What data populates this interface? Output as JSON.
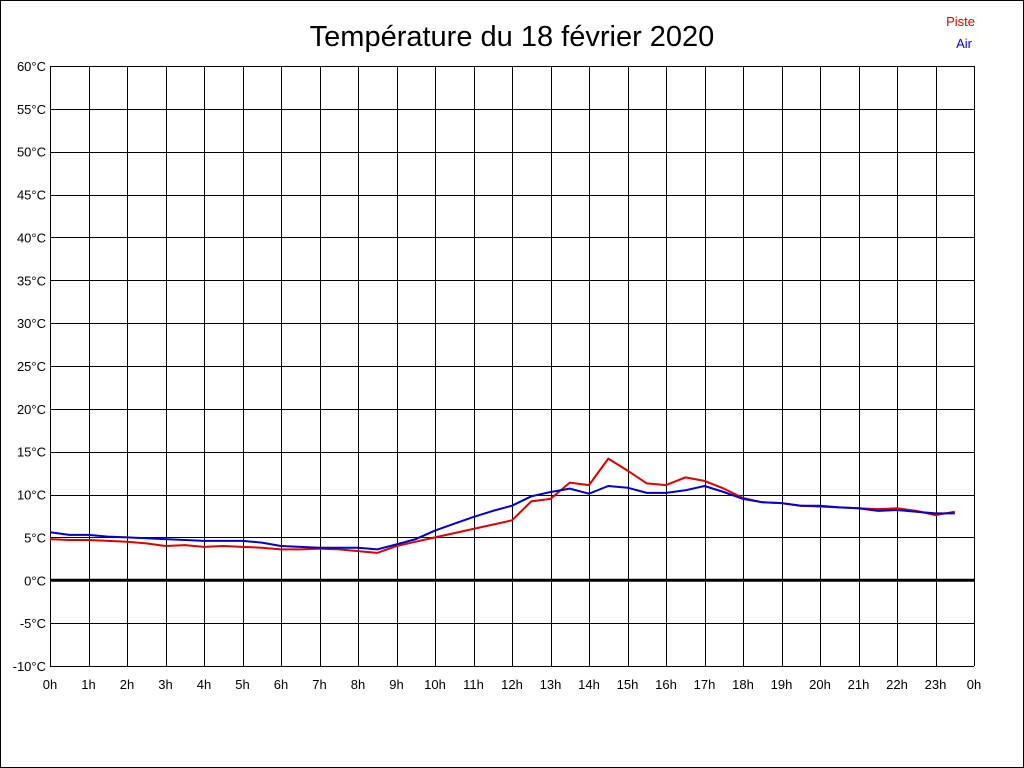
{
  "chart_data": {
    "type": "line",
    "title": "Température du 18 février 2020",
    "xlabel": "",
    "ylabel": "",
    "x_ticks": [
      "0h",
      "1h",
      "2h",
      "3h",
      "4h",
      "5h",
      "6h",
      "7h",
      "8h",
      "9h",
      "10h",
      "11h",
      "12h",
      "13h",
      "14h",
      "15h",
      "16h",
      "17h",
      "18h",
      "19h",
      "20h",
      "21h",
      "22h",
      "23h",
      "0h"
    ],
    "y_ticks": [
      "60°C",
      "55°C",
      "50°C",
      "45°C",
      "40°C",
      "35°C",
      "30°C",
      "25°C",
      "20°C",
      "15°C",
      "10°C",
      "5°C",
      "0°C",
      "-5°C",
      "-10°C"
    ],
    "xlim": [
      0,
      24
    ],
    "ylim": [
      -10,
      60
    ],
    "grid": true,
    "legend": "top-right",
    "series": [
      {
        "name": "Piste",
        "color": "#dd0000",
        "x": [
          0,
          0.5,
          1,
          1.5,
          2,
          2.5,
          3,
          3.5,
          4,
          4.5,
          5,
          5.5,
          6,
          6.5,
          7,
          7.5,
          8,
          8.5,
          9,
          9.5,
          10,
          10.5,
          11,
          11.5,
          12,
          12.5,
          13,
          13.5,
          14,
          14.5,
          15,
          15.5,
          16,
          16.5,
          17,
          17.5,
          18,
          18.5,
          19,
          19.5,
          20,
          20.5,
          21,
          21.5,
          22,
          22.5,
          23,
          23.5
        ],
        "y": [
          4.8,
          4.7,
          4.7,
          4.6,
          4.5,
          4.3,
          4.0,
          4.1,
          3.9,
          4.0,
          3.9,
          3.8,
          3.6,
          3.6,
          3.7,
          3.6,
          3.4,
          3.2,
          4.0,
          4.5,
          5.0,
          5.5,
          6.0,
          6.5,
          7.0,
          9.2,
          9.5,
          11.4,
          11.1,
          14.2,
          12.8,
          11.3,
          11.1,
          12.0,
          11.6,
          10.7,
          9.6,
          9.1,
          9.0,
          8.7,
          8.6,
          8.5,
          8.4,
          8.3,
          8.4,
          8.1,
          7.6,
          8.0
        ]
      },
      {
        "name": "Air",
        "color": "#0000cc",
        "x": [
          0,
          0.5,
          1,
          1.5,
          2,
          2.5,
          3,
          3.5,
          4,
          4.5,
          5,
          5.5,
          6,
          6.5,
          7,
          7.5,
          8,
          8.5,
          9,
          9.5,
          10,
          10.5,
          11,
          11.5,
          12,
          12.5,
          13,
          13.5,
          14,
          14.5,
          15,
          15.5,
          16,
          16.5,
          17,
          17.5,
          18,
          18.5,
          19,
          19.5,
          20,
          20.5,
          21,
          21.5,
          22,
          22.5,
          23,
          23.5
        ],
        "y": [
          5.6,
          5.3,
          5.3,
          5.1,
          5.0,
          4.9,
          4.8,
          4.7,
          4.6,
          4.6,
          4.6,
          4.4,
          4.0,
          3.9,
          3.8,
          3.8,
          3.8,
          3.6,
          4.2,
          4.8,
          5.8,
          6.6,
          7.4,
          8.1,
          8.7,
          9.8,
          10.3,
          10.7,
          10.1,
          11.0,
          10.8,
          10.2,
          10.2,
          10.5,
          11.0,
          10.3,
          9.5,
          9.1,
          9.0,
          8.7,
          8.7,
          8.5,
          8.4,
          8.1,
          8.2,
          8.0,
          7.8,
          7.8
        ]
      }
    ]
  }
}
